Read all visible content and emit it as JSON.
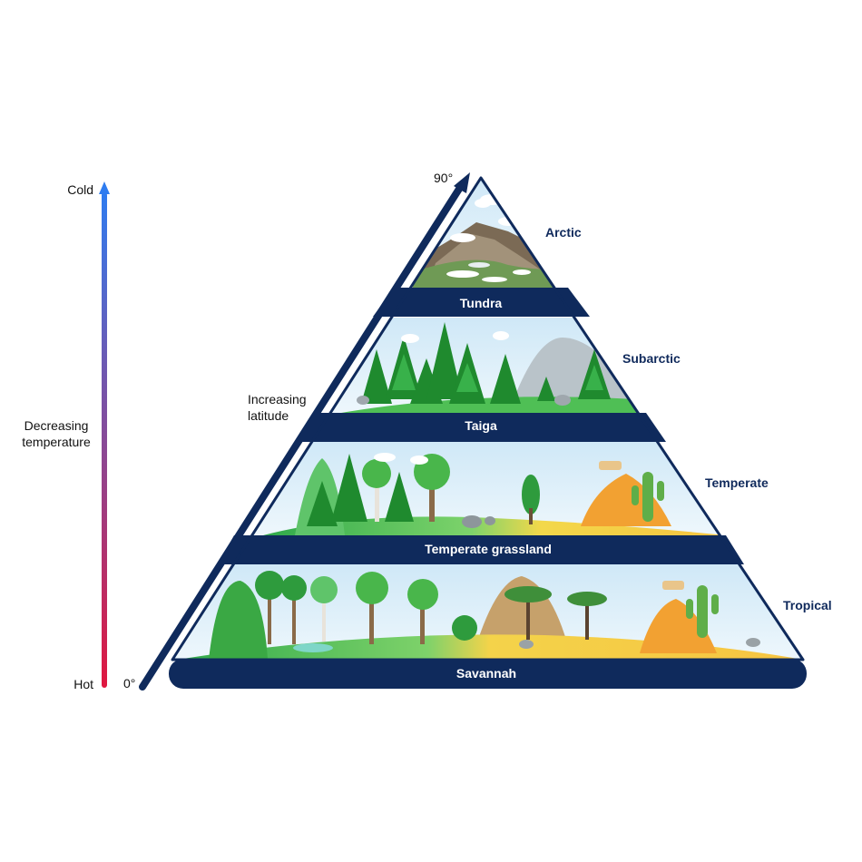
{
  "temperature_axis": {
    "top_label": "Cold",
    "bottom_label": "Hot",
    "caption_line1": "Decreasing",
    "caption_line2": "temperature",
    "cold_color": "#2f7cf0",
    "hot_color": "#e0173f"
  },
  "latitude_axis": {
    "top_label": "90°",
    "bottom_label": "0°",
    "caption_line1": "Increasing",
    "caption_line2": "latitude",
    "color": "#0f2a5c"
  },
  "biome_bands": [
    {
      "label": "Tundra",
      "zone": "Arctic"
    },
    {
      "label": "Taiga",
      "zone": "Subarctic"
    },
    {
      "label": "Temperate grassland",
      "zone": "Temperate"
    },
    {
      "label": "Savannah",
      "zone": "Tropical"
    }
  ],
  "colors": {
    "band": "#0f2a5c",
    "sky": "#d8edf8",
    "tree_dark": "#1f8a2e",
    "tree_light": "#3db54a",
    "sand": "#f6c441",
    "ground": "#58c05a"
  }
}
